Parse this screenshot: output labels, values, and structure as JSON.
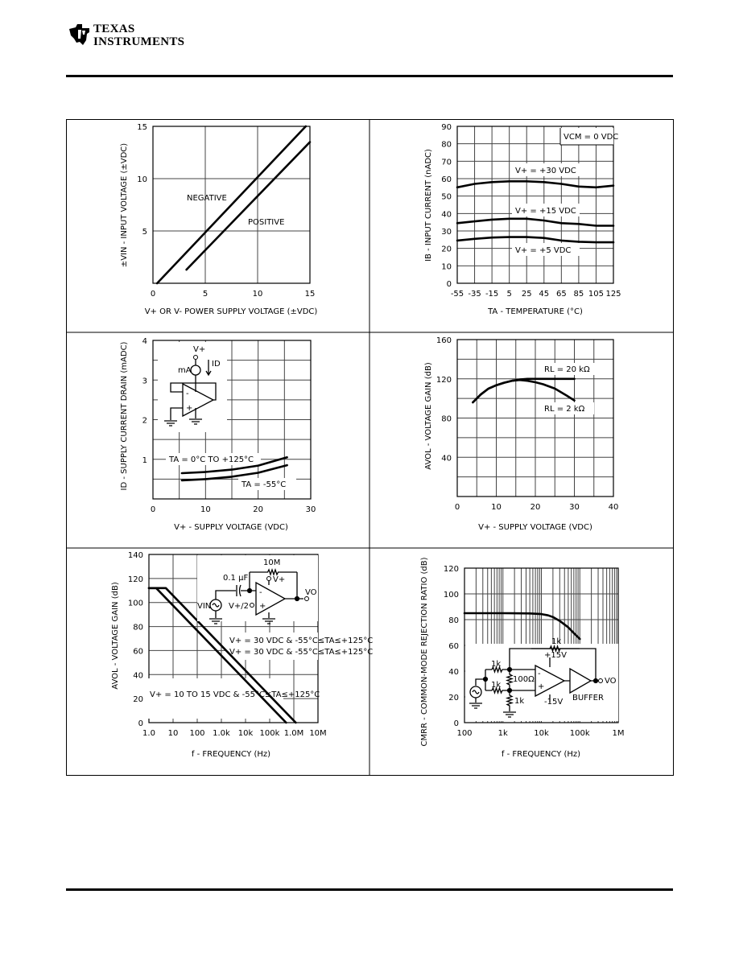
{
  "header": {
    "logo_line1": "TEXAS",
    "logo_line2": "INSTRUMENTS",
    "accent_color": "#000000"
  },
  "chart_data": [
    {
      "type": "line",
      "xlabel": "V+ OR V- POWER SUPPLY VOLTAGE (±VDC)",
      "ylabel": "±VIN - INPUT VOLTAGE (±VDC)",
      "xlim": [
        0,
        15
      ],
      "ylim": [
        0,
        15
      ],
      "x_scale": "linear",
      "grid": true,
      "x_ticks": [
        0,
        5,
        10,
        15
      ],
      "x_tick_labels": [
        "0",
        "5",
        "10",
        "15"
      ],
      "y_ticks": [
        5,
        10,
        15
      ],
      "y_tick_labels": [
        "5",
        "10",
        "15"
      ],
      "series": [
        {
          "name": "NEGATIVE",
          "points": [
            [
              0.4,
              0
            ],
            [
              14.6,
              15
            ]
          ]
        },
        {
          "name": "POSITIVE",
          "points": [
            [
              3.2,
              1.3
            ],
            [
              15,
              13.5
            ]
          ]
        }
      ],
      "annotations": [
        "NEGATIVE",
        "POSITIVE"
      ]
    },
    {
      "type": "line",
      "xlabel": "TA - TEMPERATURE (°C)",
      "ylabel": "IB - INPUT CURRENT (nADC)",
      "xlim": [
        -55,
        125
      ],
      "ylim": [
        0,
        90
      ],
      "x_scale": "linear",
      "grid": true,
      "x_ticks": [
        -55,
        -35,
        -15,
        5,
        25,
        45,
        65,
        85,
        105,
        125
      ],
      "x_tick_labels": [
        "-55",
        "-35",
        "-15",
        "5",
        "25",
        "45",
        "65",
        "85",
        "105",
        "125"
      ],
      "y_ticks": [
        0,
        10,
        20,
        30,
        40,
        50,
        60,
        70,
        80,
        90
      ],
      "y_tick_labels": [
        "0",
        "10",
        "20",
        "30",
        "40",
        "50",
        "60",
        "70",
        "80",
        "90"
      ],
      "series": [
        {
          "name": "V+ = +30 VDC",
          "points": [
            [
              -55,
              55
            ],
            [
              -35,
              57
            ],
            [
              -15,
              58
            ],
            [
              5,
              58.5
            ],
            [
              25,
              58.5
            ],
            [
              45,
              58
            ],
            [
              65,
              57
            ],
            [
              85,
              55.5
            ],
            [
              105,
              55
            ],
            [
              125,
              56
            ]
          ]
        },
        {
          "name": "V+ = +15 VDC",
          "points": [
            [
              -55,
              34.5
            ],
            [
              -35,
              35.5
            ],
            [
              -15,
              36.5
            ],
            [
              5,
              37
            ],
            [
              25,
              37
            ],
            [
              45,
              36
            ],
            [
              65,
              34.5
            ],
            [
              85,
              34
            ],
            [
              105,
              33
            ],
            [
              125,
              33
            ]
          ]
        },
        {
          "name": "V+ = +5 VDC",
          "points": [
            [
              -55,
              24.5
            ],
            [
              -35,
              25.5
            ],
            [
              -15,
              26.2
            ],
            [
              5,
              26.5
            ],
            [
              25,
              26.5
            ],
            [
              45,
              26
            ],
            [
              65,
              24.5
            ],
            [
              85,
              23.8
            ],
            [
              105,
              23.5
            ],
            [
              125,
              23.5
            ]
          ]
        }
      ],
      "annotations": [
        "VCM = 0 VDC"
      ]
    },
    {
      "type": "line",
      "xlabel": "V+ - SUPPLY VOLTAGE (VDC)",
      "ylabel": "ID - SUPPLY CURRENT DRAIN (mADC)",
      "xlim": [
        0,
        30
      ],
      "ylim": [
        0,
        4
      ],
      "x_scale": "linear",
      "grid": true,
      "x_ticks": [
        0,
        10,
        20,
        30
      ],
      "x_tick_labels": [
        "0",
        "10",
        "20",
        "30"
      ],
      "y_ticks": [
        1,
        2,
        3,
        4
      ],
      "y_tick_labels": [
        "1",
        "2",
        "3",
        "4"
      ],
      "series": [
        {
          "name": "TA = 0°C TO +125°C",
          "points": [
            [
              5.5,
              0.65
            ],
            [
              10,
              0.68
            ],
            [
              15,
              0.74
            ],
            [
              20,
              0.84
            ],
            [
              25.5,
              1.05
            ]
          ]
        },
        {
          "name": "TA = -55°C",
          "points": [
            [
              5.5,
              0.47
            ],
            [
              10,
              0.5
            ],
            [
              15,
              0.56
            ],
            [
              20,
              0.66
            ],
            [
              25.5,
              0.85
            ]
          ]
        }
      ],
      "schematic": {
        "meter": "mA",
        "supply": "V+",
        "current": "ID",
        "minus": "-",
        "plus": "+"
      }
    },
    {
      "type": "line",
      "xlabel": "V+ - SUPPLY VOLTAGE (VDC)",
      "ylabel": "AVOL - VOLTAGE GAIN (dB)",
      "xlim": [
        0,
        40
      ],
      "ylim": [
        0,
        160
      ],
      "x_scale": "linear",
      "grid": true,
      "x_ticks": [
        0,
        10,
        20,
        30,
        40
      ],
      "x_tick_labels": [
        "0",
        "10",
        "20",
        "30",
        "40"
      ],
      "y_ticks": [
        40,
        80,
        120,
        160
      ],
      "y_tick_labels": [
        "40",
        "80",
        "120",
        "160"
      ],
      "series": [
        {
          "name": "RL = 20 kΩ",
          "points": [
            [
              4,
              96
            ],
            [
              6,
              104
            ],
            [
              8,
              110
            ],
            [
              10,
              113.5
            ],
            [
              12,
              116
            ],
            [
              14,
              118
            ],
            [
              16,
              119.3
            ],
            [
              18,
              120
            ],
            [
              20,
              120
            ],
            [
              30,
              120
            ]
          ]
        },
        {
          "name": "RL = 2 kΩ",
          "points": [
            [
              4,
              96
            ],
            [
              6,
              104
            ],
            [
              8,
              110
            ],
            [
              10,
              113.5
            ],
            [
              12,
              116
            ],
            [
              14,
              118
            ],
            [
              16,
              118.8
            ],
            [
              18,
              118
            ],
            [
              20,
              116.5
            ],
            [
              22,
              114.5
            ],
            [
              25,
              110
            ],
            [
              28,
              103
            ],
            [
              30,
              98
            ]
          ]
        }
      ]
    },
    {
      "type": "line",
      "xlabel": "f - FREQUENCY (Hz)",
      "ylabel": "AVOL - VOLTAGE GAIN (dB)",
      "xlim": [
        1,
        10000000
      ],
      "ylim": [
        0,
        140
      ],
      "x_scale": "log",
      "grid": true,
      "x_ticks": [
        1,
        10,
        100,
        1000,
        10000,
        100000,
        1000000,
        10000000
      ],
      "x_tick_labels": [
        "1.0",
        "10",
        "100",
        "1.0k",
        "10k",
        "100k",
        "1.0M",
        "10M"
      ],
      "y_ticks": [
        0,
        20,
        40,
        60,
        80,
        100,
        120,
        140
      ],
      "y_tick_labels": [
        "0",
        "20",
        "40",
        "60",
        "80",
        "100",
        "120",
        "140"
      ],
      "series": [
        {
          "name": "V+ = 30 VDC & -55°C≤TA≤+125°C",
          "points": [
            [
              1,
              112
            ],
            [
              5,
              112
            ],
            [
              1200000,
              0
            ]
          ]
        },
        {
          "name": "V+ = 10 TO 15 VDC & -55°C≤TA≤+125°C",
          "points": [
            [
              1,
              112
            ],
            [
              2,
              112
            ],
            [
              480000,
              0
            ]
          ]
        }
      ],
      "schematic": {
        "cap": "0.1 µF",
        "resistor": "10M",
        "input": "VIN",
        "bias": "V+/2",
        "supply": "V+",
        "output": "VO",
        "minus": "-",
        "plus": "+"
      }
    },
    {
      "type": "line",
      "xlabel": "f - FREQUENCY (Hz)",
      "ylabel": "CMRR - COMMON-MODE REJECTION RATIO (dB)",
      "xlim": [
        100,
        1000000
      ],
      "ylim": [
        0,
        120
      ],
      "x_scale": "log",
      "grid": true,
      "x_ticks": [
        100,
        1000,
        10000,
        100000,
        1000000
      ],
      "x_tick_labels": [
        "100",
        "1k",
        "10k",
        "100k",
        "1M"
      ],
      "y_ticks": [
        0,
        20,
        40,
        60,
        80,
        100,
        120
      ],
      "y_tick_labels": [
        "0",
        "20",
        "40",
        "60",
        "80",
        "100",
        "120"
      ],
      "series": [
        {
          "points": [
            [
              100,
              85
            ],
            [
              1000,
              85
            ],
            [
              5000,
              84.8
            ],
            [
              10000,
              84.3
            ],
            [
              15000,
              83.3
            ],
            [
              20000,
              82
            ],
            [
              30000,
              79
            ],
            [
              50000,
              74
            ],
            [
              70000,
              69.5
            ],
            [
              100000,
              65
            ]
          ]
        }
      ],
      "schematic": {
        "r_feedback": "1k",
        "r_in1": "1k",
        "r_in2": "1k",
        "r_trim": "100Ω",
        "r_ground": "1k",
        "vpos": "+15V",
        "vneg": "-15V",
        "buffer": "BUFFER",
        "output": "VO",
        "minus": "-",
        "plus": "+"
      }
    }
  ]
}
